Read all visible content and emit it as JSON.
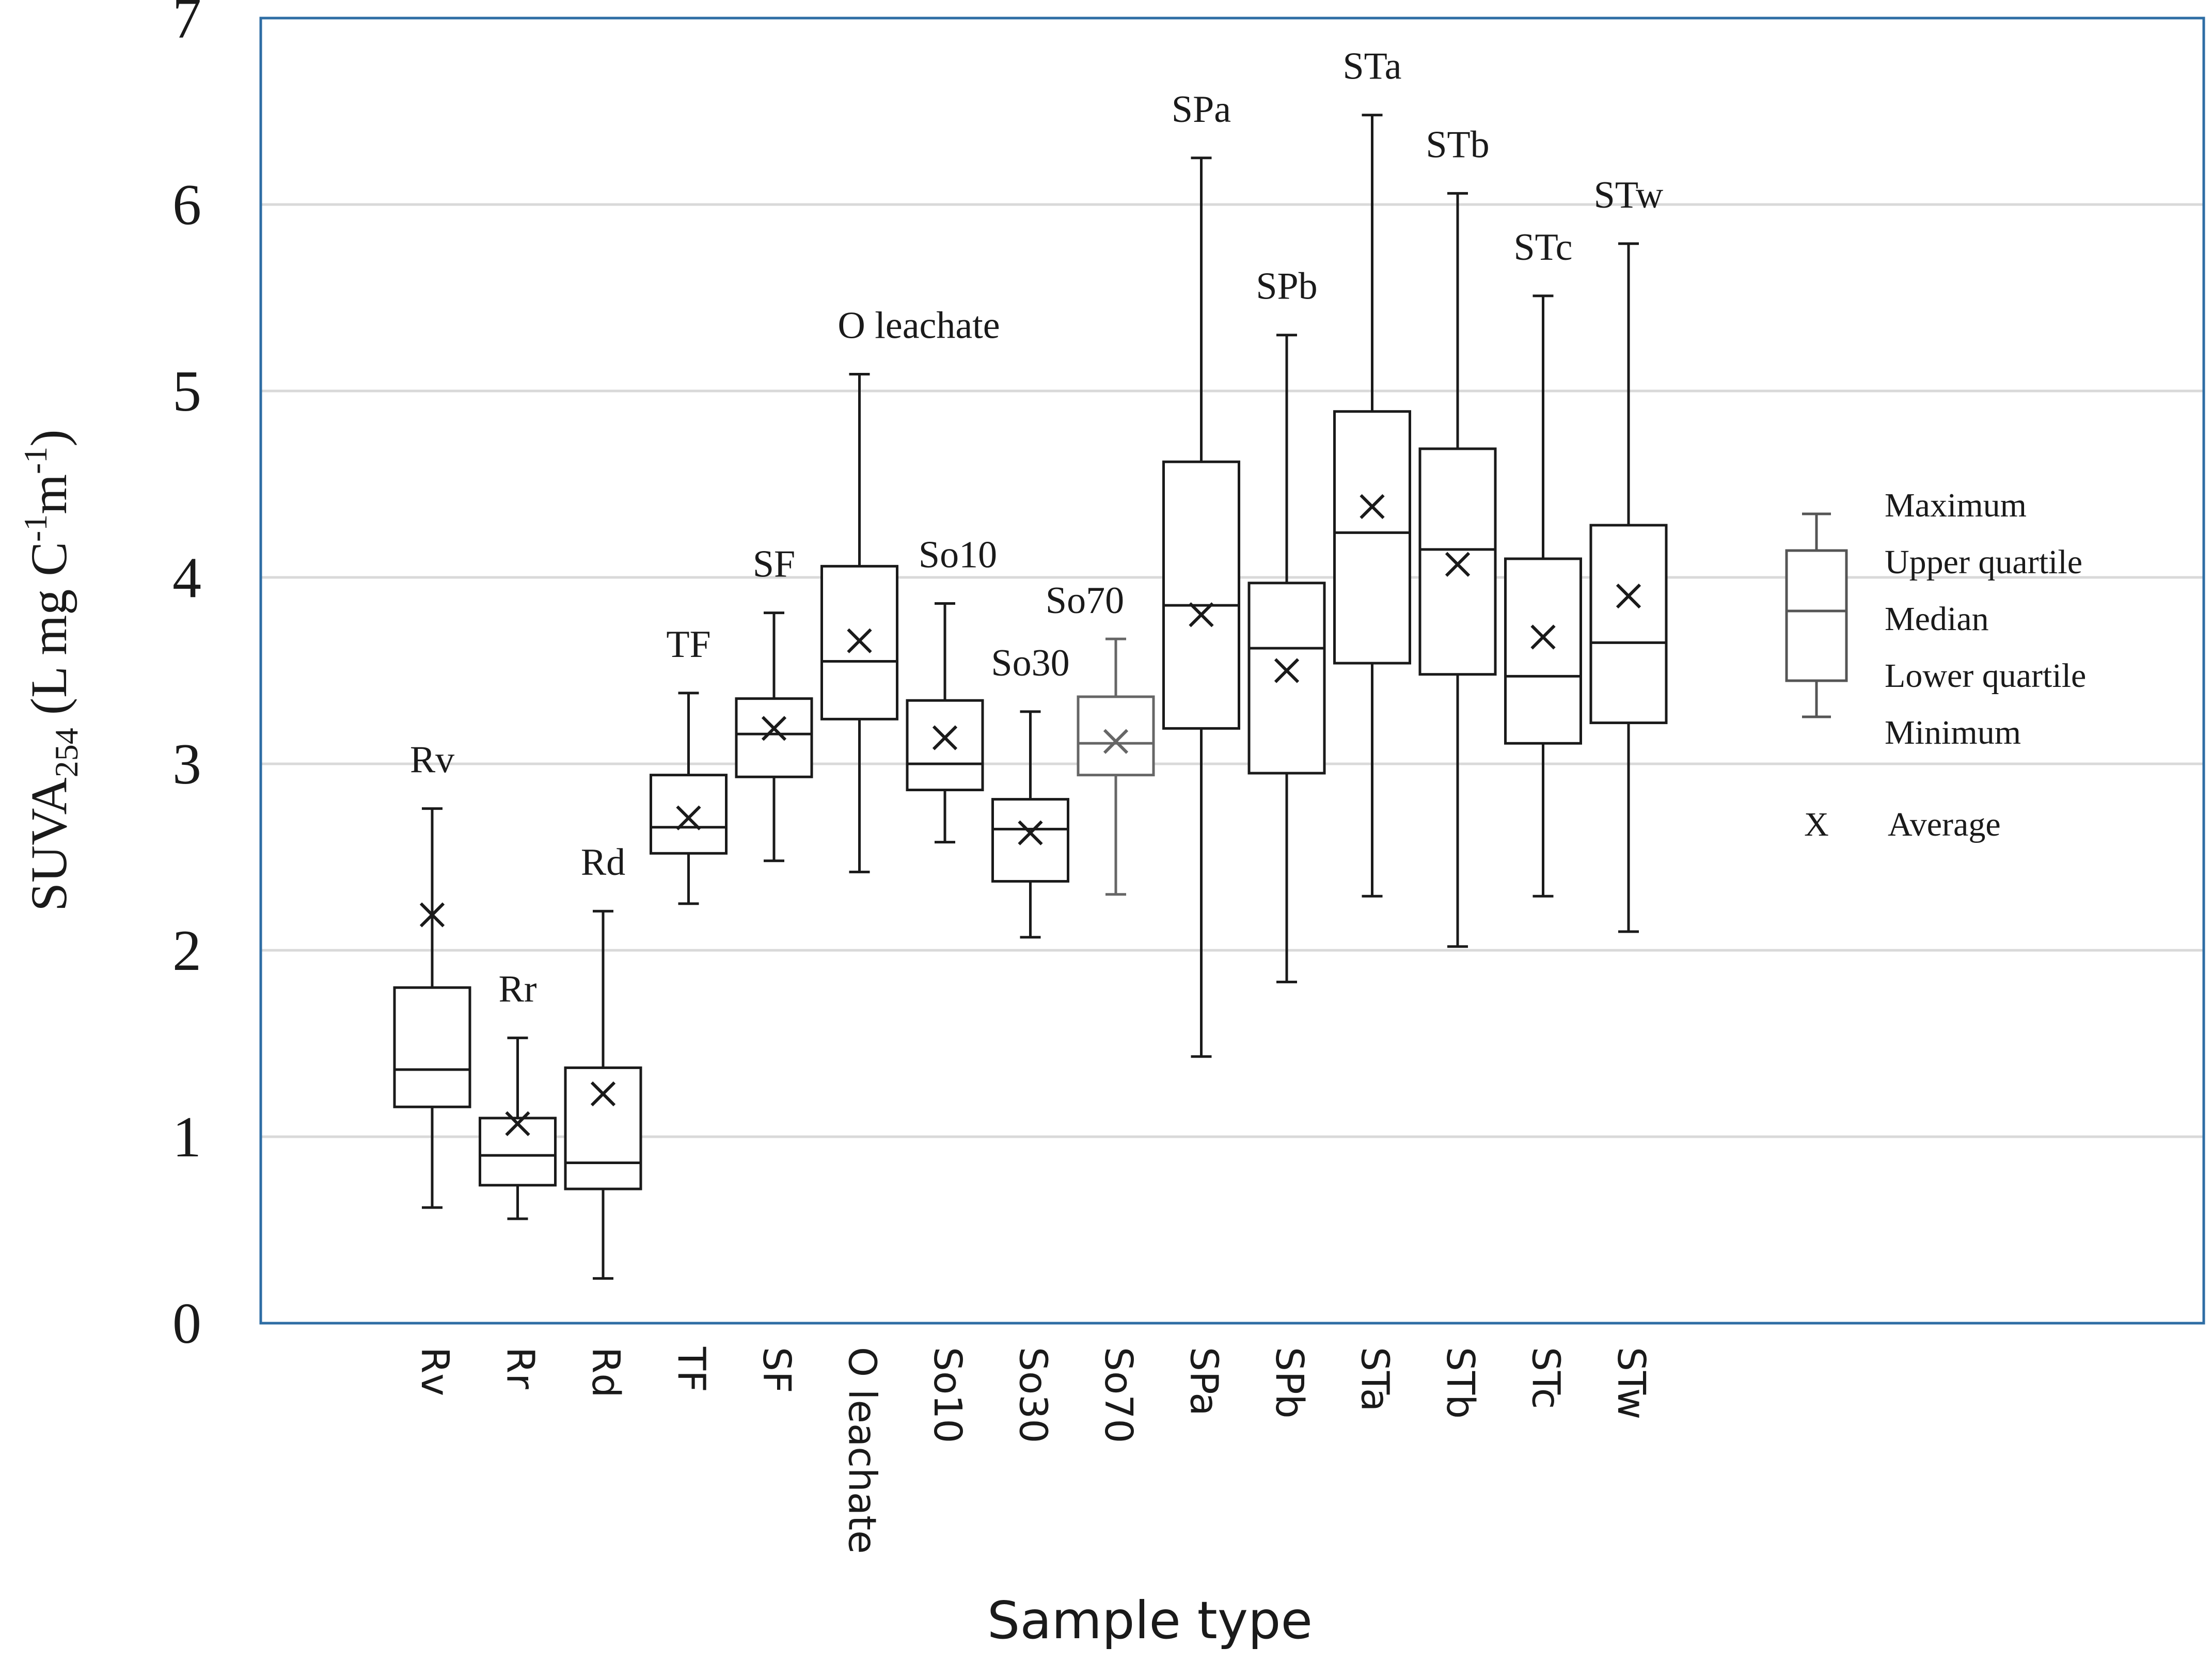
{
  "chart_data": {
    "type": "box",
    "xlabel": "Sample type",
    "ylabel": {
      "main": "SUVA",
      "sub": "254",
      "rest_open": " (L mg C",
      "sup1": "-1",
      "mid": "m",
      "sup2": "-1",
      "rest_close": ")"
    },
    "ylim": [
      0,
      7
    ],
    "yticks": [
      0,
      1,
      2,
      3,
      4,
      5,
      6,
      7
    ],
    "grid": "horizontal",
    "categories": [
      "Rv",
      "Rr",
      "Rd",
      "TF",
      "SF",
      "O leachate",
      "So10",
      "So30",
      "So70",
      "SPa",
      "SPb",
      "STa",
      "STb",
      "STc",
      "STw"
    ],
    "boxes": [
      {
        "label": "Rv",
        "min": 0.62,
        "q1": 1.16,
        "median": 1.36,
        "q3": 1.8,
        "max": 2.76,
        "mean": 2.19
      },
      {
        "label": "Rr",
        "min": 0.56,
        "q1": 0.74,
        "median": 0.9,
        "q3": 1.1,
        "max": 1.53,
        "mean": 1.07
      },
      {
        "label": "Rd",
        "min": 0.24,
        "q1": 0.72,
        "median": 0.86,
        "q3": 1.37,
        "max": 2.21,
        "mean": 1.23
      },
      {
        "label": "TF",
        "min": 2.25,
        "q1": 2.52,
        "median": 2.66,
        "q3": 2.94,
        "max": 3.38,
        "mean": 2.71
      },
      {
        "label": "SF",
        "min": 2.48,
        "q1": 2.93,
        "median": 3.16,
        "q3": 3.35,
        "max": 3.81,
        "mean": 3.19
      },
      {
        "label": "O leachate",
        "min": 2.42,
        "q1": 3.24,
        "median": 3.55,
        "q3": 4.06,
        "max": 5.09,
        "mean": 3.66
      },
      {
        "label": "So10",
        "min": 2.58,
        "q1": 2.86,
        "median": 3.0,
        "q3": 3.34,
        "max": 3.86,
        "mean": 3.14
      },
      {
        "label": "So30",
        "min": 2.07,
        "q1": 2.37,
        "median": 2.65,
        "q3": 2.81,
        "max": 3.28,
        "mean": 2.63
      },
      {
        "label": "So70",
        "min": 2.3,
        "q1": 2.94,
        "median": 3.11,
        "q3": 3.36,
        "max": 3.67,
        "mean": 3.12
      },
      {
        "label": "SPa",
        "min": 1.43,
        "q1": 3.19,
        "median": 3.85,
        "q3": 4.62,
        "max": 6.25,
        "mean": 3.8
      },
      {
        "label": "SPb",
        "min": 1.83,
        "q1": 2.95,
        "median": 3.62,
        "q3": 3.97,
        "max": 5.3,
        "mean": 3.5
      },
      {
        "label": "STa",
        "min": 2.29,
        "q1": 3.54,
        "median": 4.24,
        "q3": 4.89,
        "max": 6.48,
        "mean": 4.38
      },
      {
        "label": "STb",
        "min": 2.02,
        "q1": 3.48,
        "median": 4.15,
        "q3": 4.69,
        "max": 6.06,
        "mean": 4.07
      },
      {
        "label": "STc",
        "min": 2.29,
        "q1": 3.11,
        "median": 3.47,
        "q3": 4.1,
        "max": 5.51,
        "mean": 3.68
      },
      {
        "label": "STw",
        "min": 2.1,
        "q1": 3.22,
        "median": 3.65,
        "q3": 4.28,
        "max": 5.79,
        "mean": 3.9
      }
    ],
    "legend": {
      "placement": "right",
      "items": [
        "Maximum",
        "Upper quartile",
        "Median",
        "Lower quartile",
        "Minimum"
      ],
      "average_symbol": "X",
      "average_label": "Average"
    },
    "colors": {
      "axes_frame": "#2e6da4",
      "box": "#1a1a1a",
      "box_grey": "#666666",
      "grid": "#d9d9d9"
    }
  }
}
